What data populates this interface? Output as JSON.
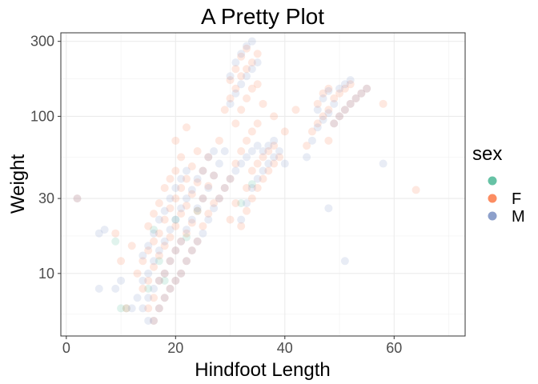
{
  "chart_data": {
    "type": "scatter",
    "title": "A Pretty Plot",
    "xlabel": "Hindfoot Length",
    "ylabel": "Weight",
    "xlim": [
      -1,
      73
    ],
    "ylim": [
      4,
      340
    ],
    "y_scale": "log10",
    "x_ticks": [
      0,
      20,
      40,
      60
    ],
    "x_tick_labels": [
      "0",
      "20",
      "40",
      "60"
    ],
    "y_ticks": [
      10,
      30,
      100,
      300
    ],
    "y_tick_labels": [
      "10",
      "30",
      "100",
      "300"
    ],
    "grid": true,
    "legend_title": "sex",
    "legend_position": "right",
    "point_alpha": 0.2,
    "series": [
      {
        "name": "",
        "color": "#66C2A5",
        "points": [
          [
            9,
            16
          ],
          [
            10,
            6
          ],
          [
            11,
            6
          ],
          [
            15,
            8
          ],
          [
            16,
            19
          ],
          [
            17,
            12
          ],
          [
            18,
            9
          ],
          [
            20,
            22
          ],
          [
            22,
            17
          ],
          [
            24,
            25
          ],
          [
            34,
            37
          ],
          [
            32,
            28
          ]
        ]
      },
      {
        "name": "F",
        "color": "#FC8D62",
        "points": [
          [
            2,
            30
          ],
          [
            9,
            18
          ],
          [
            10,
            12
          ],
          [
            11,
            6
          ],
          [
            12,
            15
          ],
          [
            13,
            10
          ],
          [
            14,
            8
          ],
          [
            14,
            12
          ],
          [
            15,
            6
          ],
          [
            15,
            9
          ],
          [
            15,
            14
          ],
          [
            15,
            20
          ],
          [
            16,
            5
          ],
          [
            16,
            7
          ],
          [
            16,
            11
          ],
          [
            16,
            16
          ],
          [
            16,
            24
          ],
          [
            17,
            6
          ],
          [
            17,
            9
          ],
          [
            17,
            13
          ],
          [
            17,
            18
          ],
          [
            17,
            28
          ],
          [
            18,
            7
          ],
          [
            18,
            10
          ],
          [
            18,
            15
          ],
          [
            18,
            22
          ],
          [
            18,
            35
          ],
          [
            19,
            8
          ],
          [
            19,
            12
          ],
          [
            19,
            17
          ],
          [
            19,
            26
          ],
          [
            19,
            40
          ],
          [
            20,
            9
          ],
          [
            20,
            14
          ],
          [
            20,
            20
          ],
          [
            20,
            30
          ],
          [
            20,
            45
          ],
          [
            20,
            70
          ],
          [
            21,
            10
          ],
          [
            21,
            16
          ],
          [
            21,
            24
          ],
          [
            21,
            35
          ],
          [
            21,
            55
          ],
          [
            22,
            12
          ],
          [
            22,
            18
          ],
          [
            22,
            27
          ],
          [
            22,
            40
          ],
          [
            22,
            85
          ],
          [
            23,
            14
          ],
          [
            23,
            21
          ],
          [
            23,
            32
          ],
          [
            23,
            48
          ],
          [
            24,
            16
          ],
          [
            24,
            25
          ],
          [
            24,
            38
          ],
          [
            24,
            60
          ],
          [
            25,
            20
          ],
          [
            25,
            30
          ],
          [
            25,
            45
          ],
          [
            26,
            24
          ],
          [
            26,
            36
          ],
          [
            26,
            55
          ],
          [
            27,
            28
          ],
          [
            27,
            42
          ],
          [
            28,
            30
          ],
          [
            28,
            70
          ],
          [
            29,
            35
          ],
          [
            29,
            110
          ],
          [
            30,
            40
          ],
          [
            30,
            130
          ],
          [
            30,
            170
          ],
          [
            30,
            22
          ],
          [
            31,
            50
          ],
          [
            31,
            90
          ],
          [
            31,
            150
          ],
          [
            31,
            200
          ],
          [
            31,
            28
          ],
          [
            32,
            60
          ],
          [
            32,
            110
          ],
          [
            32,
            180
          ],
          [
            32,
            240
          ],
          [
            32,
            20
          ],
          [
            33,
            70
          ],
          [
            33,
            130
          ],
          [
            33,
            200
          ],
          [
            33,
            270
          ],
          [
            33,
            25
          ],
          [
            33,
            35
          ],
          [
            34,
            80
          ],
          [
            34,
            150
          ],
          [
            34,
            220
          ],
          [
            34,
            30
          ],
          [
            34,
            45
          ],
          [
            35,
            90
          ],
          [
            35,
            160
          ],
          [
            35,
            250
          ],
          [
            35,
            35
          ],
          [
            35,
            50
          ],
          [
            36,
            40
          ],
          [
            36,
            55
          ],
          [
            36,
            120
          ],
          [
            37,
            45
          ],
          [
            37,
            60
          ],
          [
            38,
            50
          ],
          [
            38,
            65
          ],
          [
            38,
            100
          ],
          [
            39,
            55
          ],
          [
            40,
            80
          ],
          [
            42,
            110
          ],
          [
            44,
            65
          ],
          [
            45,
            80
          ],
          [
            46,
            90
          ],
          [
            46,
            120
          ],
          [
            47,
            100
          ],
          [
            47,
            140
          ],
          [
            48,
            70
          ],
          [
            48,
            110
          ],
          [
            48,
            150
          ],
          [
            49,
            90
          ],
          [
            49,
            130
          ],
          [
            50,
            100
          ],
          [
            50,
            140
          ],
          [
            51,
            110
          ],
          [
            51,
            150
          ],
          [
            52,
            120
          ],
          [
            52,
            160
          ],
          [
            53,
            130
          ],
          [
            54,
            140
          ],
          [
            55,
            150
          ],
          [
            58,
            120
          ],
          [
            64,
            34
          ]
        ]
      },
      {
        "name": "M",
        "color": "#8DA0CB",
        "points": [
          [
            2,
            30
          ],
          [
            6,
            8
          ],
          [
            6,
            18
          ],
          [
            7,
            19
          ],
          [
            9,
            8
          ],
          [
            10,
            9
          ],
          [
            12,
            6
          ],
          [
            13,
            7
          ],
          [
            14,
            6
          ],
          [
            14,
            9
          ],
          [
            14,
            13
          ],
          [
            15,
            5
          ],
          [
            15,
            7
          ],
          [
            15,
            10
          ],
          [
            15,
            15
          ],
          [
            16,
            5
          ],
          [
            16,
            8
          ],
          [
            16,
            12
          ],
          [
            16,
            18
          ],
          [
            17,
            6
          ],
          [
            17,
            9
          ],
          [
            17,
            14
          ],
          [
            17,
            22
          ],
          [
            18,
            7
          ],
          [
            18,
            10
          ],
          [
            18,
            16
          ],
          [
            18,
            25
          ],
          [
            19,
            8
          ],
          [
            19,
            12
          ],
          [
            19,
            19
          ],
          [
            19,
            30
          ],
          [
            20,
            9
          ],
          [
            20,
            14
          ],
          [
            20,
            22
          ],
          [
            20,
            35
          ],
          [
            21,
            10
          ],
          [
            21,
            16
          ],
          [
            21,
            26
          ],
          [
            21,
            40
          ],
          [
            22,
            12
          ],
          [
            22,
            19
          ],
          [
            22,
            30
          ],
          [
            22,
            45
          ],
          [
            23,
            14
          ],
          [
            23,
            22
          ],
          [
            23,
            34
          ],
          [
            24,
            16
          ],
          [
            24,
            26
          ],
          [
            24,
            40
          ],
          [
            25,
            18
          ],
          [
            25,
            30
          ],
          [
            25,
            45
          ],
          [
            26,
            22
          ],
          [
            26,
            35
          ],
          [
            26,
            55
          ],
          [
            27,
            26
          ],
          [
            27,
            42
          ],
          [
            27,
            60
          ],
          [
            28,
            30
          ],
          [
            28,
            50
          ],
          [
            29,
            35
          ],
          [
            29,
            60
          ],
          [
            30,
            40
          ],
          [
            30,
            120
          ],
          [
            30,
            180
          ],
          [
            31,
            45
          ],
          [
            31,
            140
          ],
          [
            31,
            220
          ],
          [
            32,
            50
          ],
          [
            32,
            160
          ],
          [
            32,
            250
          ],
          [
            32,
            22
          ],
          [
            33,
            55
          ],
          [
            33,
            180
          ],
          [
            33,
            280
          ],
          [
            33,
            28
          ],
          [
            34,
            60
          ],
          [
            34,
            200
          ],
          [
            34,
            300
          ],
          [
            34,
            35
          ],
          [
            35,
            65
          ],
          [
            35,
            220
          ],
          [
            35,
            40
          ],
          [
            36,
            45
          ],
          [
            36,
            60
          ],
          [
            37,
            50
          ],
          [
            37,
            65
          ],
          [
            38,
            55
          ],
          [
            38,
            70
          ],
          [
            39,
            60
          ],
          [
            40,
            50
          ],
          [
            44,
            55
          ],
          [
            45,
            70
          ],
          [
            46,
            85
          ],
          [
            46,
            110
          ],
          [
            47,
            95
          ],
          [
            47,
            130
          ],
          [
            48,
            105
          ],
          [
            48,
            145
          ],
          [
            49,
            90
          ],
          [
            49,
            120
          ],
          [
            50,
            100
          ],
          [
            50,
            150
          ],
          [
            51,
            110
          ],
          [
            51,
            160
          ],
          [
            52,
            120
          ],
          [
            52,
            170
          ],
          [
            53,
            130
          ],
          [
            54,
            140
          ],
          [
            55,
            150
          ],
          [
            48,
            26
          ],
          [
            51,
            12
          ],
          [
            58,
            50
          ]
        ]
      }
    ]
  }
}
